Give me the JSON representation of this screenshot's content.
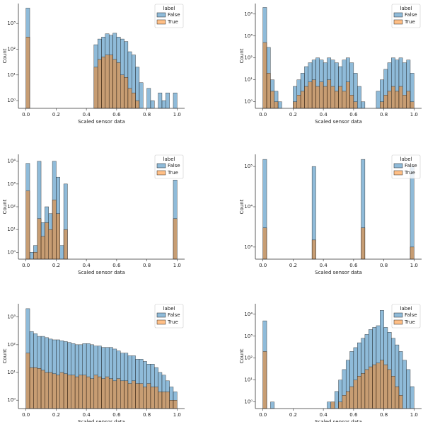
{
  "chart_data": [
    {
      "type": "histogram",
      "xlabel": "Scaled sensor data",
      "ylabel": "Count",
      "log_y": true,
      "legend_title": "label",
      "legend": "upper right",
      "bins": [
        0,
        0.025,
        0.05,
        0.075,
        0.1,
        0.125,
        0.15,
        0.175,
        0.2,
        0.225,
        0.25,
        0.275,
        0.3,
        0.325,
        0.35,
        0.375,
        0.4,
        0.425,
        0.45,
        0.475,
        0.5,
        0.525,
        0.55,
        0.575,
        0.6,
        0.625,
        0.65,
        0.675,
        0.7,
        0.725,
        0.75,
        0.775,
        0.8,
        0.825,
        0.85,
        0.875,
        0.9,
        0.925,
        0.95,
        0.975,
        1.0
      ],
      "xlim": [
        -0.05,
        1.05
      ],
      "xticks": [
        {
          "value": 0,
          "label": "0.0"
        },
        0.2,
        0.4,
        0.6,
        0.8,
        {
          "value": 1,
          "label": "1.0"
        }
      ],
      "ylim": [
        0.5,
        6000
      ],
      "yticks": [
        {
          "value": 1,
          "label": "10⁰"
        },
        {
          "value": 10,
          "label": "10¹"
        },
        {
          "value": 100,
          "label": "10²"
        },
        {
          "value": 1000,
          "label": "10³"
        }
      ],
      "series": [
        {
          "name": "False",
          "color": "#1f77b4",
          "values": [
            4000,
            0,
            0,
            0,
            0,
            0,
            0,
            0,
            0,
            0,
            0,
            0,
            0,
            0,
            0,
            0,
            0,
            0,
            150,
            250,
            300,
            400,
            350,
            420,
            300,
            250,
            200,
            80,
            60,
            20,
            5,
            0,
            3,
            1,
            0,
            2,
            1,
            2,
            0,
            2
          ]
        },
        {
          "name": "True",
          "color": "#ff7f0e",
          "values": [
            300,
            0,
            0,
            0,
            0,
            0,
            0,
            0,
            0,
            0,
            0,
            0,
            0,
            0,
            0,
            0,
            0,
            0,
            20,
            40,
            50,
            60,
            60,
            40,
            30,
            10,
            8,
            3,
            2,
            1,
            0,
            0,
            0,
            0,
            0,
            0,
            0,
            0,
            0,
            0
          ]
        }
      ]
    },
    {
      "type": "histogram",
      "xlabel": "Scaled sensor data",
      "ylabel": "Count",
      "log_y": true,
      "legend_title": "label",
      "legend": "upper right",
      "bins": [
        0,
        0.025,
        0.05,
        0.075,
        0.1,
        0.125,
        0.15,
        0.175,
        0.2,
        0.225,
        0.25,
        0.275,
        0.3,
        0.325,
        0.35,
        0.375,
        0.4,
        0.425,
        0.45,
        0.475,
        0.5,
        0.525,
        0.55,
        0.575,
        0.6,
        0.625,
        0.65,
        0.675,
        0.7,
        0.725,
        0.75,
        0.775,
        0.8,
        0.825,
        0.85,
        0.875,
        0.9,
        0.925,
        0.95,
        0.975,
        1.0
      ],
      "xlim": [
        -0.05,
        1.05
      ],
      "xticks": [
        {
          "value": 0,
          "label": "0.0"
        },
        0.2,
        0.4,
        0.6,
        0.8,
        {
          "value": 1,
          "label": "1.0"
        }
      ],
      "ylim": [
        0.5,
        30000
      ],
      "yticks": [
        {
          "value": 1,
          "label": "10⁰"
        },
        {
          "value": 10,
          "label": "10¹"
        },
        {
          "value": 100,
          "label": "10²"
        },
        {
          "value": 1000,
          "label": "10³"
        },
        {
          "value": 10000,
          "label": "10⁴"
        }
      ],
      "series": [
        {
          "name": "False",
          "color": "#1f77b4",
          "values": [
            20000,
            300,
            10,
            3,
            1,
            0,
            0,
            0,
            5,
            10,
            20,
            40,
            60,
            80,
            100,
            80,
            60,
            100,
            80,
            60,
            40,
            80,
            100,
            60,
            20,
            5,
            1,
            0,
            0,
            0,
            3,
            10,
            30,
            60,
            100,
            80,
            100,
            60,
            80,
            20
          ]
        },
        {
          "name": "True",
          "color": "#ff7f0e",
          "values": [
            500,
            20,
            3,
            1,
            0,
            0,
            0,
            0,
            1,
            2,
            3,
            5,
            8,
            10,
            5,
            8,
            5,
            10,
            5,
            3,
            5,
            3,
            8,
            2,
            1,
            0,
            0,
            0,
            0,
            0,
            0,
            1,
            2,
            3,
            5,
            3,
            5,
            2,
            3,
            1
          ]
        }
      ]
    },
    {
      "type": "histogram",
      "xlabel": "Scaled sensor data",
      "ylabel": "Count",
      "log_y": true,
      "legend_title": "label",
      "legend": "upper right",
      "bins": [
        0,
        0.025,
        0.05,
        0.075,
        0.1,
        0.125,
        0.15,
        0.175,
        0.2,
        0.225,
        0.25,
        0.275,
        0.3,
        0.325,
        0.35,
        0.375,
        0.4,
        0.425,
        0.45,
        0.475,
        0.5,
        0.525,
        0.55,
        0.575,
        0.6,
        0.625,
        0.65,
        0.675,
        0.7,
        0.725,
        0.75,
        0.775,
        0.8,
        0.825,
        0.85,
        0.875,
        0.9,
        0.925,
        0.95,
        0.975,
        1.0
      ],
      "xlim": [
        -0.05,
        1.05
      ],
      "xticks": [
        {
          "value": 0,
          "label": "0.0"
        },
        0.2,
        0.4,
        0.6,
        0.8,
        {
          "value": 1,
          "label": "1.0"
        }
      ],
      "ylim": [
        0.5,
        20000
      ],
      "yticks": [
        {
          "value": 1,
          "label": "10⁰"
        },
        {
          "value": 10,
          "label": "10¹"
        },
        {
          "value": 100,
          "label": "10²"
        },
        {
          "value": 1000,
          "label": "10³"
        },
        {
          "value": 10000,
          "label": "10⁴"
        }
      ],
      "series": [
        {
          "name": "False",
          "color": "#1f77b4",
          "values": [
            8000,
            1,
            2,
            10000,
            20,
            100,
            50,
            10000,
            2000,
            2,
            1000,
            0,
            0,
            0,
            0,
            0,
            0,
            0,
            0,
            0,
            0,
            0,
            0,
            0,
            0,
            0,
            0,
            0,
            0,
            0,
            0,
            0,
            0,
            0,
            0,
            0,
            0,
            0,
            0,
            1500
          ]
        },
        {
          "name": "True",
          "color": "#ff7f0e",
          "values": [
            500,
            0,
            1,
            30,
            5,
            20,
            10,
            200,
            50,
            0,
            10,
            0,
            0,
            0,
            0,
            0,
            0,
            0,
            0,
            0,
            0,
            0,
            0,
            0,
            0,
            0,
            0,
            0,
            0,
            0,
            0,
            0,
            0,
            0,
            0,
            0,
            0,
            0,
            0,
            30
          ]
        }
      ]
    },
    {
      "type": "histogram",
      "xlabel": "Scaled sensor data",
      "ylabel": "Count",
      "log_y": true,
      "legend_title": "label",
      "legend": "upper right",
      "bins": [
        0,
        0.025,
        0.05,
        0.075,
        0.1,
        0.125,
        0.15,
        0.175,
        0.2,
        0.225,
        0.25,
        0.275,
        0.3,
        0.325,
        0.35,
        0.375,
        0.4,
        0.425,
        0.45,
        0.475,
        0.5,
        0.525,
        0.55,
        0.575,
        0.6,
        0.625,
        0.65,
        0.675,
        0.7,
        0.725,
        0.75,
        0.775,
        0.8,
        0.825,
        0.85,
        0.875,
        0.9,
        0.925,
        0.95,
        0.975,
        1.0
      ],
      "xlim": [
        -0.05,
        1.05
      ],
      "xticks": [
        {
          "value": 0,
          "label": "0.0"
        },
        0.2,
        0.4,
        0.6,
        0.8,
        {
          "value": 1,
          "label": "1.0"
        }
      ],
      "ylim": [
        500,
        200000
      ],
      "yticks": [
        {
          "value": 1000,
          "label": "10³"
        },
        {
          "value": 10000,
          "label": "10⁴"
        },
        {
          "value": 100000,
          "label": "10⁵"
        }
      ],
      "series": [
        {
          "name": "False",
          "color": "#1f77b4",
          "values": [
            150000,
            0,
            0,
            0,
            0,
            0,
            0,
            0,
            0,
            0,
            0,
            0,
            0,
            100000,
            0,
            0,
            0,
            0,
            0,
            0,
            0,
            0,
            0,
            0,
            0,
            0,
            150000,
            0,
            0,
            0,
            0,
            0,
            0,
            0,
            0,
            0,
            0,
            0,
            0,
            100000
          ]
        },
        {
          "name": "True",
          "color": "#ff7f0e",
          "values": [
            3000,
            0,
            0,
            0,
            0,
            0,
            0,
            0,
            0,
            0,
            0,
            0,
            0,
            1500,
            0,
            0,
            0,
            0,
            0,
            0,
            0,
            0,
            0,
            0,
            0,
            0,
            3000,
            0,
            0,
            0,
            0,
            0,
            0,
            0,
            0,
            0,
            0,
            0,
            0,
            1000
          ]
        }
      ]
    },
    {
      "type": "histogram",
      "xlabel": "Scaled sensor data",
      "ylabel": "Count",
      "log_y": true,
      "legend_title": "label",
      "legend": "upper right",
      "bins": [
        0,
        0.025,
        0.05,
        0.075,
        0.1,
        0.125,
        0.15,
        0.175,
        0.2,
        0.225,
        0.25,
        0.275,
        0.3,
        0.325,
        0.35,
        0.375,
        0.4,
        0.425,
        0.45,
        0.475,
        0.5,
        0.525,
        0.55,
        0.575,
        0.6,
        0.625,
        0.65,
        0.675,
        0.7,
        0.725,
        0.75,
        0.775,
        0.8,
        0.825,
        0.85,
        0.875,
        0.9,
        0.925,
        0.95,
        0.975,
        1.0
      ],
      "xlim": [
        -0.05,
        1.05
      ],
      "xticks": [
        {
          "value": 0,
          "label": "0.0"
        },
        0.2,
        0.4,
        0.6,
        0.8,
        {
          "value": 1,
          "label": "1.0"
        }
      ],
      "ylim": [
        0.5,
        3000
      ],
      "yticks": [
        {
          "value": 1,
          "label": "10⁰"
        },
        {
          "value": 10,
          "label": "10¹"
        },
        {
          "value": 100,
          "label": "10²"
        },
        {
          "value": 1000,
          "label": "10³"
        }
      ],
      "series": [
        {
          "name": "False",
          "color": "#1f77b4",
          "values": [
            2000,
            300,
            250,
            200,
            200,
            180,
            160,
            150,
            150,
            140,
            130,
            120,
            110,
            100,
            100,
            110,
            110,
            100,
            90,
            90,
            80,
            80,
            80,
            70,
            60,
            50,
            50,
            40,
            40,
            30,
            30,
            25,
            20,
            20,
            15,
            10,
            8,
            5,
            3,
            2
          ]
        },
        {
          "name": "True",
          "color": "#ff7f0e",
          "values": [
            50,
            15,
            15,
            14,
            12,
            10,
            10,
            9,
            8,
            10,
            9,
            8,
            8,
            7,
            8,
            8,
            7,
            6,
            8,
            7,
            6,
            7,
            6,
            5,
            6,
            5,
            5,
            4,
            5,
            4,
            4,
            3,
            4,
            3,
            3,
            2,
            2,
            2,
            1,
            1
          ]
        }
      ]
    },
    {
      "type": "histogram",
      "xlabel": "Scaled sensor data",
      "ylabel": "Count",
      "log_y": true,
      "legend_title": "label",
      "legend": "upper right",
      "bins": [
        0,
        0.025,
        0.05,
        0.075,
        0.1,
        0.125,
        0.15,
        0.175,
        0.2,
        0.225,
        0.25,
        0.275,
        0.3,
        0.325,
        0.35,
        0.375,
        0.4,
        0.425,
        0.45,
        0.475,
        0.5,
        0.525,
        0.55,
        0.575,
        0.6,
        0.625,
        0.65,
        0.675,
        0.7,
        0.725,
        0.75,
        0.775,
        0.8,
        0.825,
        0.85,
        0.875,
        0.9,
        0.925,
        0.95,
        0.975,
        1.0
      ],
      "xlim": [
        -0.05,
        1.05
      ],
      "xticks": [
        {
          "value": 0,
          "label": "0.0"
        },
        0.2,
        0.4,
        0.6,
        0.8,
        {
          "value": 1,
          "label": "1.0"
        }
      ],
      "ylim": [
        0.5,
        30000
      ],
      "yticks": [
        {
          "value": 1,
          "label": "10⁰"
        },
        {
          "value": 10,
          "label": "10¹"
        },
        {
          "value": 100,
          "label": "10²"
        },
        {
          "value": 1000,
          "label": "10³"
        },
        {
          "value": 10000,
          "label": "10⁴"
        }
      ],
      "series": [
        {
          "name": "False",
          "color": "#1f77b4",
          "values": [
            5000,
            0,
            1,
            0,
            0,
            0,
            0,
            0,
            0,
            0,
            0,
            0,
            0,
            0,
            0,
            0,
            0,
            1,
            1,
            3,
            10,
            30,
            80,
            200,
            300,
            500,
            800,
            1200,
            2000,
            2500,
            3000,
            15000,
            2500,
            1500,
            800,
            400,
            200,
            80,
            30,
            5
          ]
        },
        {
          "name": "True",
          "color": "#ff7f0e",
          "values": [
            200,
            0,
            0,
            0,
            0,
            0,
            0,
            0,
            0,
            0,
            0,
            0,
            0,
            0,
            0,
            0,
            0,
            0,
            1,
            0,
            1,
            2,
            3,
            5,
            10,
            15,
            20,
            30,
            40,
            50,
            60,
            80,
            50,
            30,
            15,
            5,
            2,
            0,
            0,
            0
          ]
        }
      ]
    }
  ]
}
